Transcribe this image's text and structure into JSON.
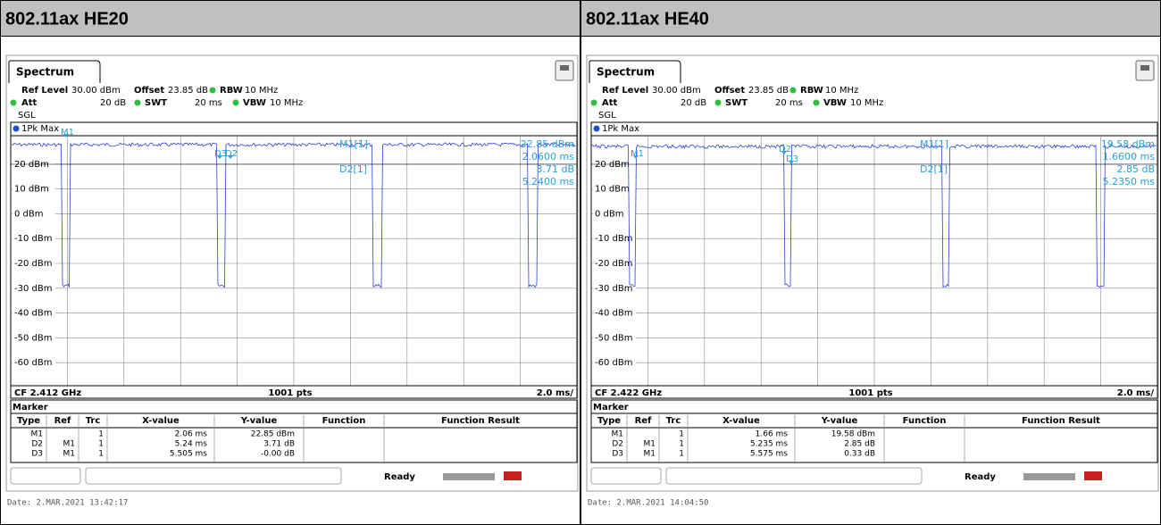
{
  "panels": [
    {
      "title": "802.11ax HE20",
      "tab": "Spectrum",
      "settings": {
        "ref_level_label": "Ref Level",
        "ref_level": "30.00 dBm",
        "offset_label": "Offset",
        "offset": "23.85 dB",
        "rbw_label": "RBW",
        "rbw": "10 MHz",
        "att_label": "Att",
        "att": "20 dB",
        "swt_label": "SWT",
        "swt": "20 ms",
        "vbw_label": "VBW",
        "vbw": "10 MHz",
        "mode": "SGL"
      },
      "trace_label": "1Pk Max",
      "y_axis_labels": [
        "20 dBm",
        "10 dBm",
        "0 dBm",
        "-10 dBm",
        "-20 dBm",
        "-30 dBm",
        "-40 dBm",
        "-50 dBm",
        "-60 dBm"
      ],
      "marker_readout": {
        "m1_name": "M1[1]",
        "m1_level": "22.85 dBm",
        "m1_time": "2.0600 ms",
        "d2_name": "D2[1]",
        "d2_level": "3.71 dB",
        "d2_time": "5.2400 ms"
      },
      "trace_markers": [
        "M1",
        "D3",
        "D2"
      ],
      "footer": {
        "center_freq": "CF 2.412 GHz",
        "points": "1001 pts",
        "scale": "2.0 ms/"
      },
      "marker_table": {
        "title": "Marker",
        "headers": [
          "Type",
          "Ref",
          "Trc",
          "X-value",
          "Y-value",
          "Function",
          "Function Result"
        ],
        "rows": [
          {
            "type": "M1",
            "trc": "1",
            "x": "2.06 ms",
            "y": "22.85 dBm"
          },
          {
            "type": "D2",
            "ref": "M1",
            "trc": "1",
            "x": "5.24 ms",
            "y": "3.71 dB"
          },
          {
            "type": "D3",
            "ref": "M1",
            "trc": "1",
            "x": "5.505 ms",
            "y": "-0.00 dB"
          }
        ]
      },
      "status": "Ready",
      "date": "Date: 2.MAR.2021  13:42:17"
    },
    {
      "title": "802.11ax HE40",
      "tab": "Spectrum",
      "settings": {
        "ref_level_label": "Ref Level",
        "ref_level": "30.00 dBm",
        "offset_label": "Offset",
        "offset": "23.85 dB",
        "rbw_label": "RBW",
        "rbw": "10 MHz",
        "att_label": "Att",
        "att": "20 dB",
        "swt_label": "SWT",
        "swt": "20 ms",
        "vbw_label": "VBW",
        "vbw": "10 MHz",
        "mode": "SGL"
      },
      "trace_label": "1Pk Max",
      "y_axis_labels": [
        "20 dBm",
        "10 dBm",
        "0 dBm",
        "-10 dBm",
        "-20 dBm",
        "-30 dBm",
        "-40 dBm",
        "-50 dBm",
        "-60 dBm"
      ],
      "marker_readout": {
        "m1_name": "M1[1]",
        "m1_level": "19.58 dBm",
        "m1_time": "1.6600 ms",
        "d2_name": "D2[1]",
        "d2_level": "2.85 dB",
        "d2_time": "5.2350 ms"
      },
      "trace_markers": [
        "M1",
        "D2",
        "D3"
      ],
      "footer": {
        "center_freq": "CF 2.422 GHz",
        "points": "1001 pts",
        "scale": "2.0 ms/"
      },
      "marker_table": {
        "title": "Marker",
        "headers": [
          "Type",
          "Ref",
          "Trc",
          "X-value",
          "Y-value",
          "Function",
          "Function Result"
        ],
        "rows": [
          {
            "type": "M1",
            "trc": "1",
            "x": "1.66 ms",
            "y": "19.58 dBm"
          },
          {
            "type": "D2",
            "ref": "M1",
            "trc": "1",
            "x": "5.235 ms",
            "y": "2.85 dB"
          },
          {
            "type": "D3",
            "ref": "M1",
            "trc": "1",
            "x": "5.575 ms",
            "y": "0.33 dB"
          }
        ]
      },
      "status": "Ready",
      "date": "Date: 2.MAR.2021  14:04:50"
    }
  ]
}
